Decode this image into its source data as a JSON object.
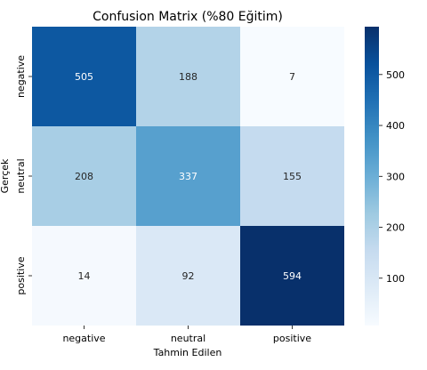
{
  "chart_data": {
    "type": "heatmap",
    "title": "Confusion Matrix (%80 Eğitim)",
    "xlabel": "Tahmin Edilen",
    "ylabel": "Gerçek",
    "x_categories": [
      "negative",
      "neutral",
      "positive"
    ],
    "y_categories": [
      "negative",
      "neutral",
      "positive"
    ],
    "values": [
      [
        505,
        188,
        7
      ],
      [
        208,
        337,
        155
      ],
      [
        14,
        92,
        594
      ]
    ],
    "colormap": "Blues",
    "color_range": [
      7,
      594
    ],
    "colorbar_ticks": [
      100,
      200,
      300,
      400,
      500
    ],
    "grid": false,
    "legend": "colorbar-right"
  }
}
